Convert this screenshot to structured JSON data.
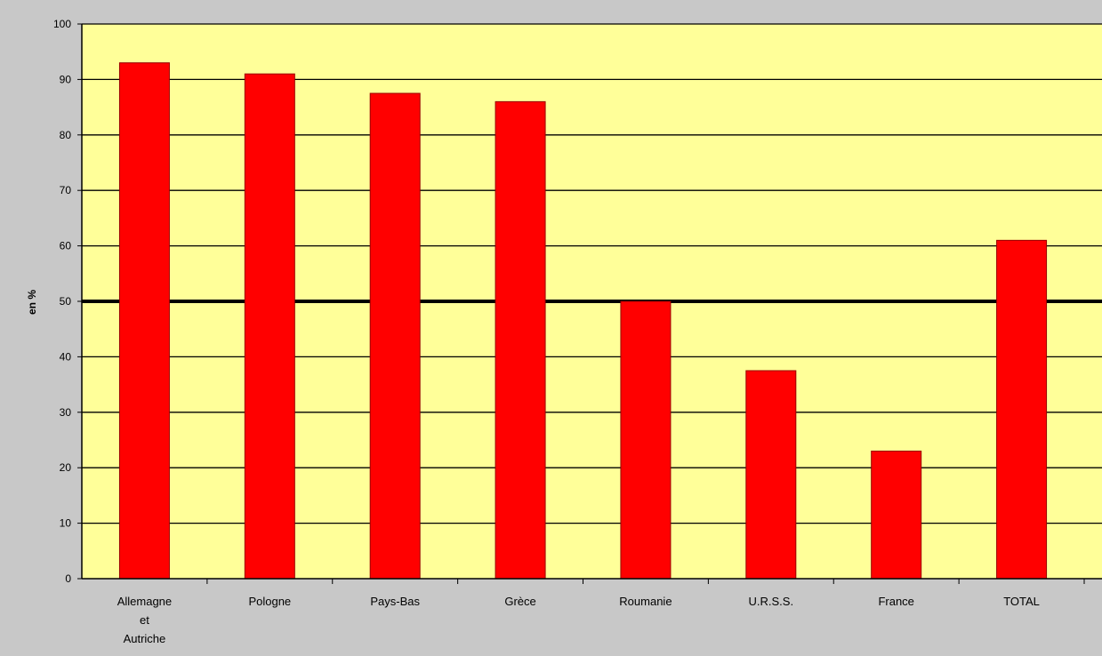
{
  "chart_data": {
    "type": "bar",
    "title": "",
    "xlabel": "",
    "ylabel": "en %",
    "ylim": [
      0,
      100
    ],
    "yticks": [
      0,
      10,
      20,
      30,
      40,
      50,
      60,
      70,
      80,
      90,
      100
    ],
    "ytick_labels": [
      "0",
      "10",
      "20",
      "30",
      "40",
      "50",
      "60",
      "70",
      "80",
      "90",
      "100"
    ],
    "categories": [
      "Allemagne et Autriche",
      "Pologne",
      "Pays-Bas",
      "Grèce",
      "Roumanie",
      "U.R.S.S.",
      "France",
      "TOTAL"
    ],
    "category_lines": [
      [
        "Allemagne",
        "et",
        "Autriche"
      ],
      [
        "Pologne"
      ],
      [
        "Pays-Bas"
      ],
      [
        "Grèce"
      ],
      [
        "Roumanie"
      ],
      [
        "U.R.S.S."
      ],
      [
        "France"
      ],
      [
        "TOTAL"
      ]
    ],
    "values": [
      93,
      91,
      87.5,
      86,
      50,
      37.5,
      23,
      61
    ],
    "reference_line": 50,
    "grid": true,
    "colors": {
      "plot_background": "#ffff99",
      "outer_background": "#c8c8c8",
      "bar": "#ff0000",
      "bar_edge": "#990000",
      "gridline": "#000000"
    }
  }
}
